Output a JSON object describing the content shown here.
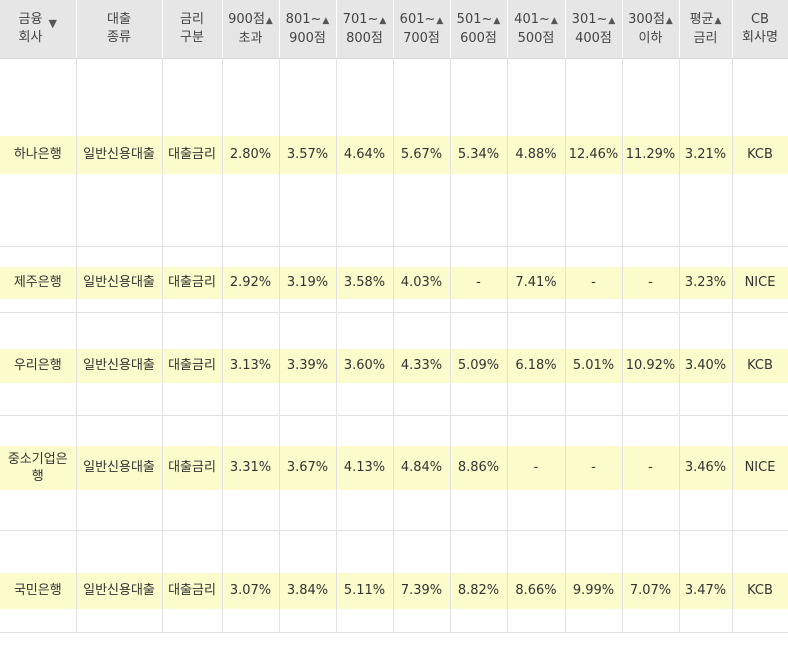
{
  "headers": [
    {
      "lines": [
        "금융",
        "회사"
      ],
      "sort": "▼"
    },
    {
      "lines": [
        "대출",
        "종류"
      ],
      "sort": ""
    },
    {
      "lines": [
        "금리",
        "구분"
      ],
      "sort": ""
    },
    {
      "lines": [
        "900점",
        "초과"
      ],
      "sort": "▲"
    },
    {
      "lines": [
        "801~",
        "900점"
      ],
      "sort": "▲"
    },
    {
      "lines": [
        "701~",
        "800점"
      ],
      "sort": "▲"
    },
    {
      "lines": [
        "601~",
        "700점"
      ],
      "sort": "▲"
    },
    {
      "lines": [
        "501~",
        "600점"
      ],
      "sort": "▲"
    },
    {
      "lines": [
        "401~",
        "500점"
      ],
      "sort": "▲"
    },
    {
      "lines": [
        "301~",
        "400점"
      ],
      "sort": "▲"
    },
    {
      "lines": [
        "300점",
        "이하"
      ],
      "sort": "▲"
    },
    {
      "lines": [
        "평균",
        "금리"
      ],
      "sort": "▲"
    },
    {
      "lines": [
        "CB",
        "회사명"
      ],
      "sort": ""
    }
  ],
  "rows": [
    {
      "cells": [
        "하나은행",
        "일반신용대출",
        "대출금리",
        "2.80%",
        "3.57%",
        "4.64%",
        "5.67%",
        "5.34%",
        "4.88%",
        "12.46%",
        "11.29%",
        "3.21%",
        "KCB"
      ]
    },
    {
      "cells": [
        "제주은행",
        "일반신용대출",
        "대출금리",
        "2.92%",
        "3.19%",
        "3.58%",
        "4.03%",
        "-",
        "7.41%",
        "-",
        "-",
        "3.23%",
        "NICE"
      ]
    },
    {
      "cells": [
        "우리은행",
        "일반신용대출",
        "대출금리",
        "3.13%",
        "3.39%",
        "3.60%",
        "4.33%",
        "5.09%",
        "6.18%",
        "5.01%",
        "10.92%",
        "3.40%",
        "KCB"
      ]
    },
    {
      "cells": [
        "중소기업은\n행",
        "일반신용대출",
        "대출금리",
        "3.31%",
        "3.67%",
        "4.13%",
        "4.84%",
        "8.86%",
        "-",
        "-",
        "-",
        "3.46%",
        "NICE"
      ]
    },
    {
      "cells": [
        "국민은행",
        "일반신용대출",
        "대출금리",
        "3.07%",
        "3.84%",
        "5.11%",
        "7.39%",
        "8.82%",
        "8.66%",
        "9.99%",
        "7.07%",
        "3.47%",
        "KCB"
      ]
    }
  ]
}
